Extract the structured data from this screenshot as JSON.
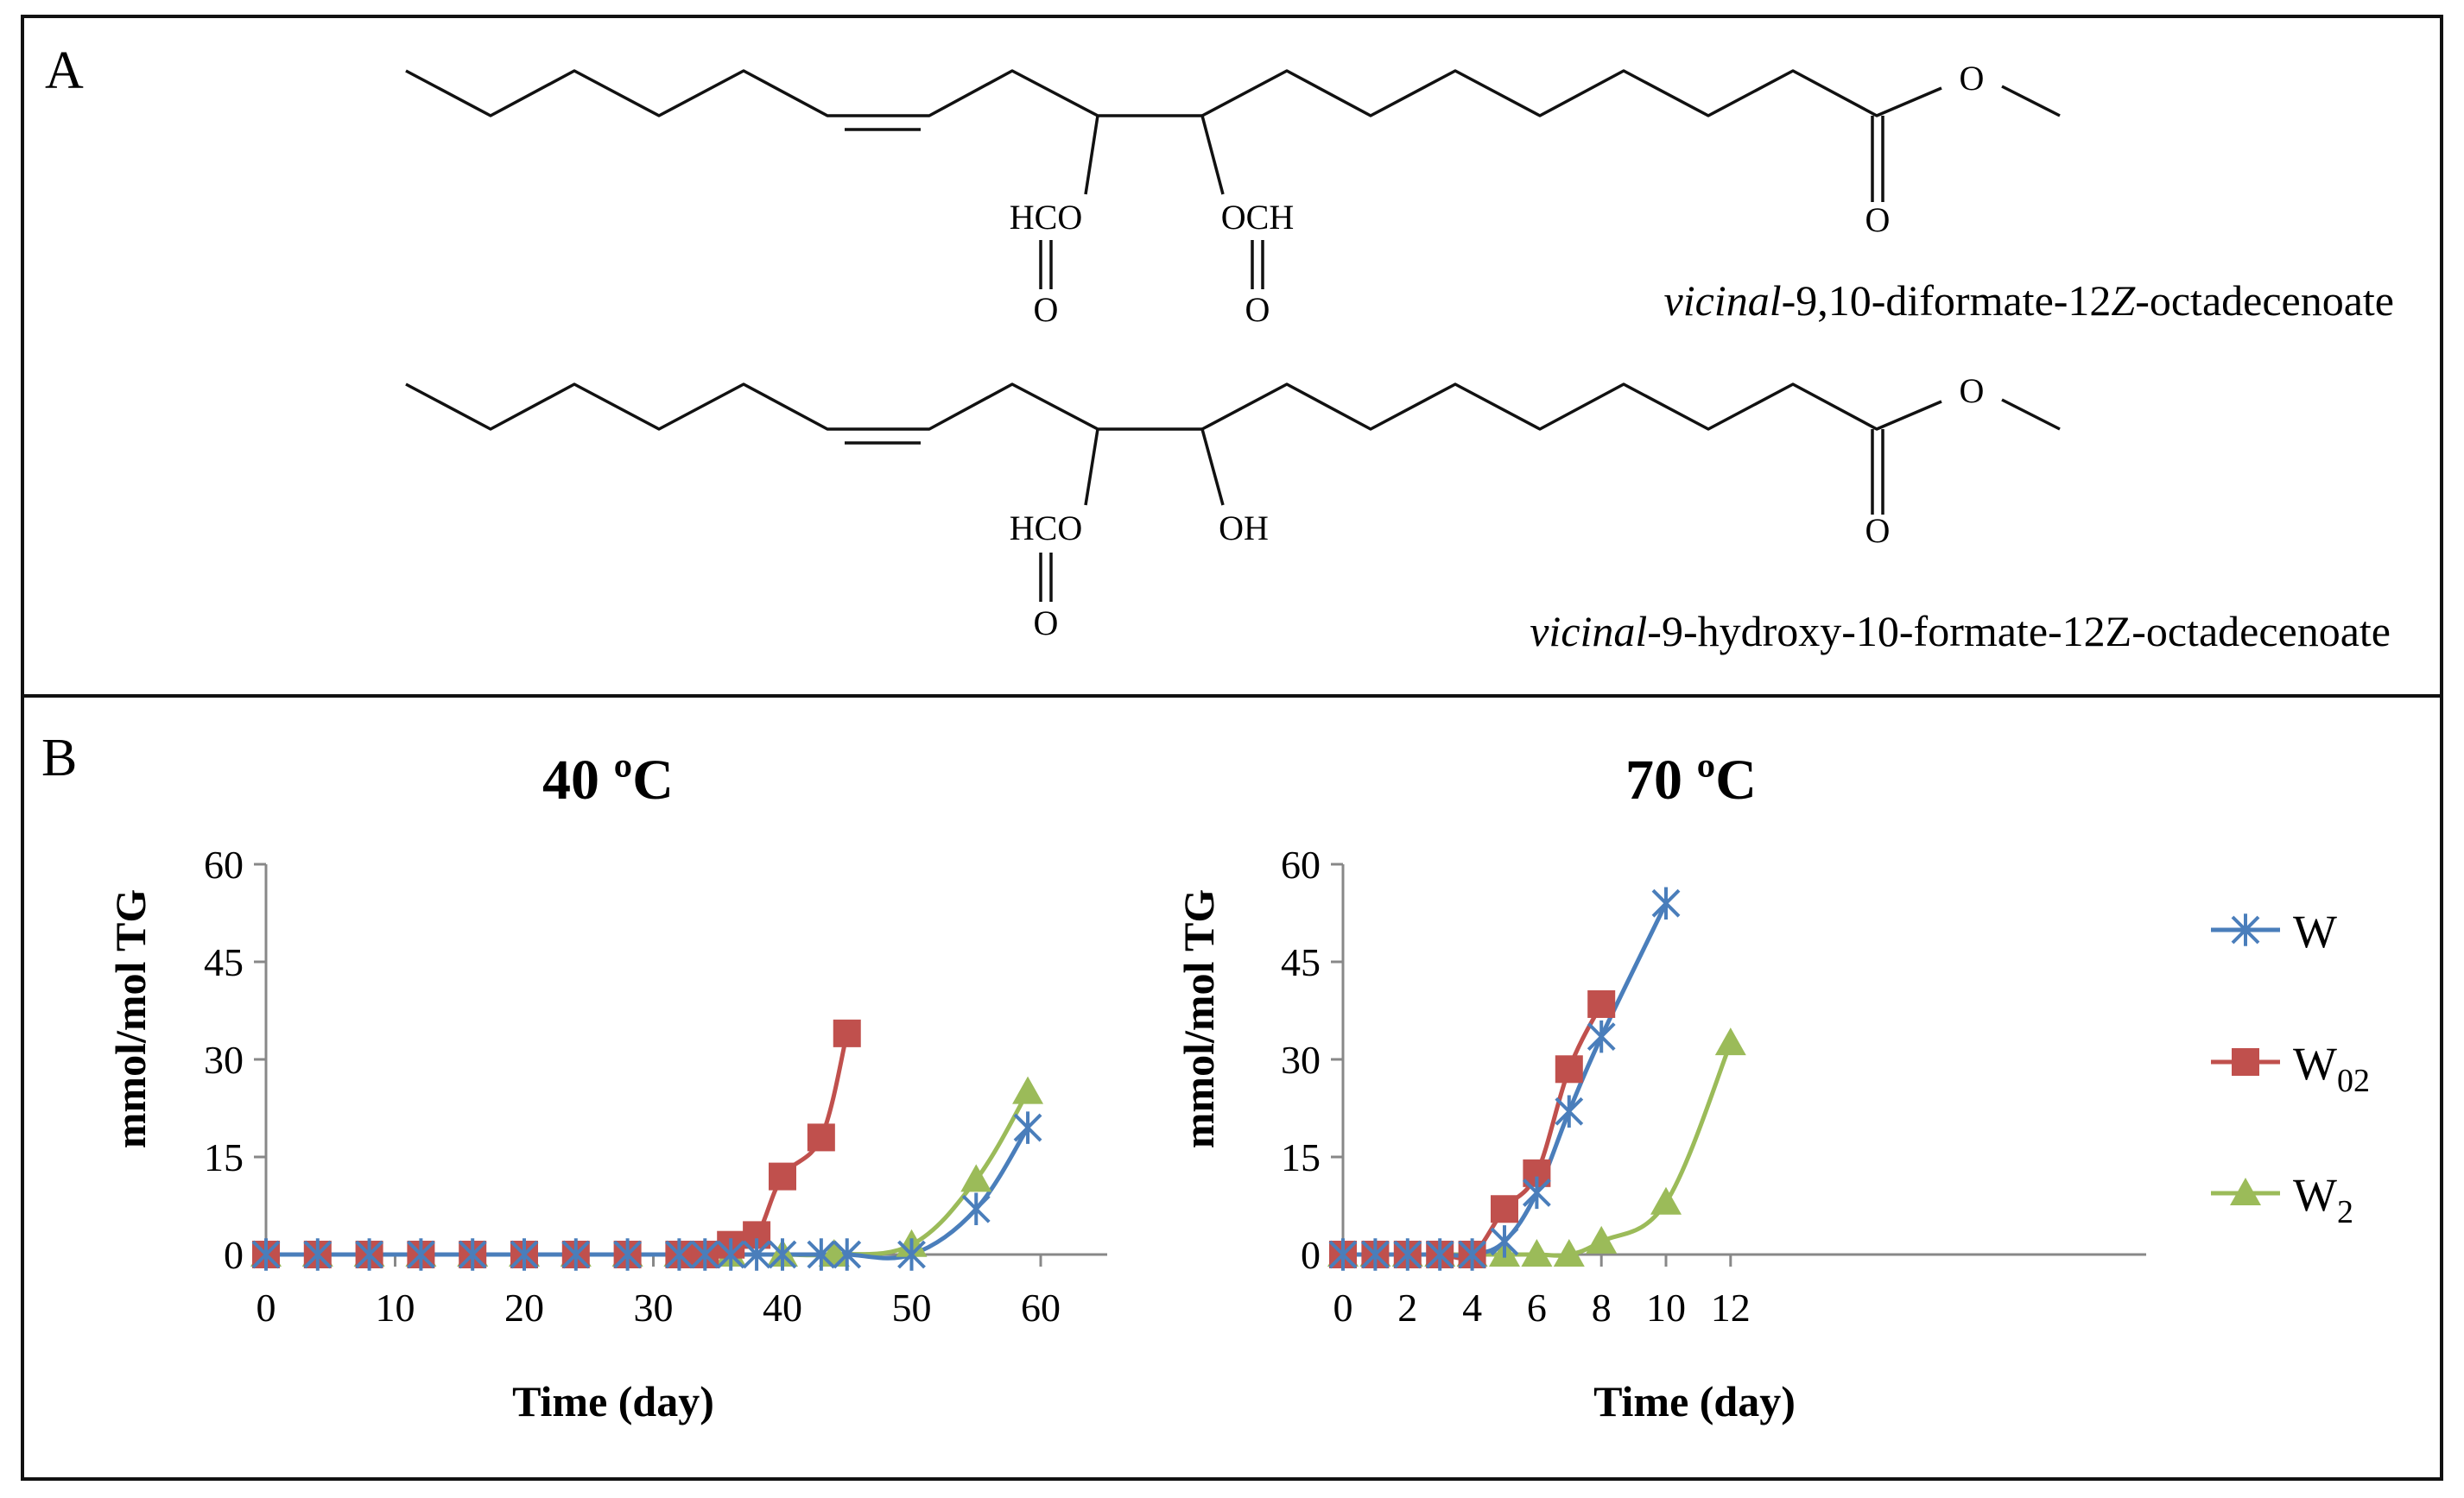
{
  "panel_a": {
    "letter": "A",
    "molecule1": {
      "name_italic": "vicinal",
      "name_rest": "-9,10-diformate-12",
      "name_z": "Z",
      "name_tail": "-octadecenoate",
      "sub_left_top": "HCO",
      "sub_left_bottom": "O",
      "sub_right_top": "OCH",
      "sub_right_bottom": "O",
      "ester_O": "O",
      "carbonyl_O": "O"
    },
    "molecule2": {
      "name_italic": "vicinal",
      "name_rest": "-9-hydroxy-10-formate-12Z-octadecenoate",
      "sub_left_top": "HCO",
      "sub_left_bottom": "O",
      "sub_right_top": "OH",
      "ester_O": "O",
      "carbonyl_O": "O"
    }
  },
  "panel_b": {
    "letter": "B"
  },
  "legend": {
    "items": [
      {
        "base": "W",
        "sub": "",
        "color": "#4a7ebb",
        "marker": "asterisk"
      },
      {
        "base": "W",
        "sub": "02",
        "color": "#c0504d",
        "marker": "square"
      },
      {
        "base": "W",
        "sub": "2",
        "color": "#9bbb59",
        "marker": "triangle"
      }
    ]
  },
  "chart_data": [
    {
      "type": "line",
      "title": "40 ºC",
      "xlabel": "Time (day)",
      "ylabel": "mmol/mol TG",
      "xlim": [
        0,
        65
      ],
      "ylim": [
        0,
        60
      ],
      "xticks": [
        0,
        10,
        20,
        30,
        40,
        50,
        60
      ],
      "yticks": [
        0,
        15,
        30,
        45,
        60
      ],
      "grid": false,
      "series": [
        {
          "name": "W",
          "color": "#4a7ebb",
          "marker": "asterisk",
          "x": [
            0,
            4,
            8,
            12,
            16,
            20,
            24,
            28,
            32,
            34,
            36,
            38,
            40,
            43,
            45,
            50,
            55,
            59
          ],
          "y": [
            0,
            0,
            0,
            0,
            0,
            0,
            0,
            0,
            0,
            0,
            0,
            0,
            0,
            0,
            0,
            0,
            7,
            19.5
          ]
        },
        {
          "name": "W02",
          "color": "#c0504d",
          "marker": "square",
          "x": [
            0,
            4,
            8,
            12,
            16,
            20,
            24,
            28,
            32,
            34,
            36,
            38,
            40,
            43,
            45
          ],
          "y": [
            0,
            0,
            0,
            0,
            0,
            0,
            0,
            0,
            0,
            0,
            1.5,
            3,
            12,
            18,
            34
          ]
        },
        {
          "name": "W2",
          "color": "#9bbb59",
          "marker": "triangle",
          "x": [
            0,
            4,
            8,
            12,
            16,
            20,
            24,
            28,
            32,
            36,
            40,
            44,
            50,
            55,
            59
          ],
          "y": [
            0,
            0,
            0,
            0,
            0,
            0,
            0,
            0,
            0,
            0,
            0,
            0,
            1.5,
            11.5,
            25
          ]
        }
      ]
    },
    {
      "type": "line",
      "title": "70 ºC",
      "xlabel": "Time (day)",
      "ylabel": "mmol/mol TG",
      "xlim": [
        0,
        13
      ],
      "ylim": [
        0,
        60
      ],
      "xticks": [
        0,
        2,
        4,
        6,
        8,
        10,
        12
      ],
      "yticks": [
        0,
        15,
        30,
        45,
        60
      ],
      "grid": false,
      "series": [
        {
          "name": "W",
          "color": "#4a7ebb",
          "marker": "asterisk",
          "x": [
            0,
            1,
            2,
            3,
            4,
            5,
            6,
            7,
            8,
            10
          ],
          "y": [
            0,
            0,
            0,
            0,
            0,
            2,
            9.5,
            22,
            33.5,
            54
          ]
        },
        {
          "name": "W02",
          "color": "#c0504d",
          "marker": "square",
          "x": [
            0,
            1,
            2,
            3,
            4,
            5,
            6,
            7,
            8
          ],
          "y": [
            0,
            0,
            0,
            0,
            0,
            7,
            12.5,
            28.5,
            38.5
          ]
        },
        {
          "name": "W2",
          "color": "#9bbb59",
          "marker": "triangle",
          "x": [
            0,
            1,
            2,
            3,
            4,
            5,
            6,
            7,
            8,
            10,
            12
          ],
          "y": [
            0,
            0,
            0,
            0,
            0,
            0,
            0,
            0,
            2,
            8,
            32.5
          ]
        }
      ]
    }
  ]
}
